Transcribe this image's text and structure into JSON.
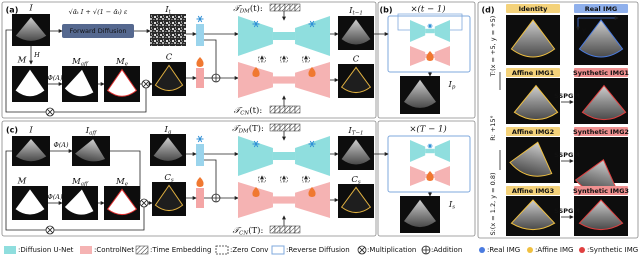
{
  "panel_a": {
    "label": "(a)",
    "image": "I",
    "formula": "√ᾱₜ I + √(1 − ᾱₜ) ε",
    "forward_diffusion": "Forward Diffusion",
    "noisy": {
      "base": "I",
      "sub": "t"
    },
    "h": "H",
    "mask": "M",
    "phi_mask": "Φ(A)",
    "mask_aff": {
      "base": "M",
      "sub": "aff"
    },
    "mask_edge": {
      "base": "M",
      "sub": "e"
    },
    "condition": "C",
    "t_dm": {
      "base": "𝒯",
      "sub": "DM",
      "arg": "(t):"
    },
    "t_cn": {
      "base": "𝒯",
      "sub": "CN",
      "arg": "(t):"
    },
    "output": {
      "base": "I",
      "sub": "t−1"
    },
    "condition_out": "C"
  },
  "panel_b": {
    "label": "(b)",
    "loop": "×(t − 1)",
    "result": {
      "base": "I",
      "sub": "p"
    }
  },
  "panel_c": {
    "label": "(c)",
    "image": "I",
    "phi_image": "Φ(A)",
    "image_aff": {
      "base": "I",
      "sub": "aff"
    },
    "guide": {
      "base": "I",
      "sub": "g"
    },
    "mask": "M",
    "phi_mask": "Φ(A)",
    "mask_aff": {
      "base": "M",
      "sub": "aff"
    },
    "mask_edge": {
      "base": "M",
      "sub": "e"
    },
    "condition": {
      "base": "C",
      "sub": "s"
    },
    "t_dm": {
      "base": "𝒯",
      "sub": "DM",
      "arg": "(T):"
    },
    "t_cn": {
      "base": "𝒯",
      "sub": "CN",
      "arg": "(T):"
    },
    "output": {
      "base": "I",
      "sub": "T−1"
    },
    "condition_out": {
      "base": "C",
      "sub": "s"
    },
    "loop": "×(T − 1)",
    "result": {
      "base": "I",
      "sub": "s"
    }
  },
  "panel_d": {
    "label": "(d)",
    "identity": "Identity",
    "real": "Real IMG",
    "axis_x": "X",
    "axis_y": "Y",
    "rows": [
      {
        "transform": "T:(x = +5, y = +5)",
        "affine": "Affine IMG1",
        "method": "SSPGM",
        "synthetic": "Synthetic IMG1"
      },
      {
        "transform": "R: +15°",
        "affine": "Affine IMG2",
        "method": "SSPGM",
        "synthetic": "Synthetic IMG2"
      },
      {
        "transform": "S:(x = 1.2, y = 0.8)",
        "affine": "Affine IMG3",
        "method": "SSPGM",
        "synthetic": "Synthetic IMG3"
      }
    ]
  },
  "legend": [
    ":Diffusion U-Net",
    ":ControlNet",
    ":Time Embedding",
    ":Zero Conv",
    ":Reverse Diffusion",
    ":Multiplication",
    ":Addition",
    ":Real IMG",
    ":Affine IMG",
    ":Synthetic IMG"
  ]
}
